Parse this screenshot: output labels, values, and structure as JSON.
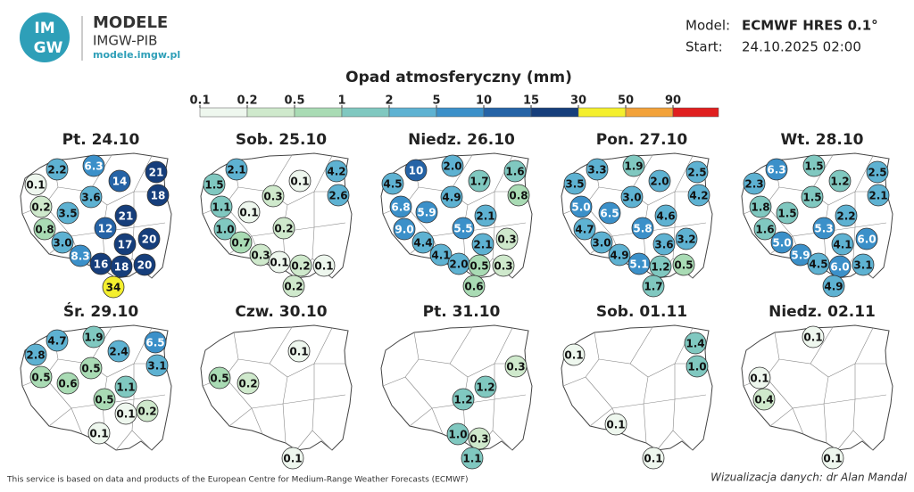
{
  "header": {
    "logo": [
      "IM",
      "GW"
    ],
    "brand": "MODELE",
    "org": "IMGW-PIB",
    "url": "modele.imgw.pl",
    "model_label": "Model:",
    "model": "ECMWF HRES 0.1°",
    "start_label": "Start:",
    "start": "24.10.2025 02:00"
  },
  "legend": {
    "title": "Opad atmosferyczny (mm)",
    "ticks": [
      0.1,
      0.2,
      0.5,
      1,
      2,
      5,
      10,
      15,
      30,
      50,
      90
    ],
    "colors": [
      "#eef7ee",
      "#cfe9cc",
      "#a9dbb4",
      "#80c8c0",
      "#5eb2d2",
      "#3b90c9",
      "#2563a6",
      "#163e7b",
      "#f4ef2e",
      "#f2a23a",
      "#e01f1f"
    ]
  },
  "maps": [
    {
      "date": "Pt. 24.10",
      "values": [
        "2.2",
        "6.3",
        "21",
        "0.1",
        "14",
        "18",
        "3.6",
        "0.2",
        "3.5",
        "21",
        "0.8",
        "12",
        "20",
        "3.0",
        "17",
        "8.3",
        "16",
        "18",
        "20",
        "34"
      ]
    },
    {
      "date": "Sob. 25.10",
      "values": [
        "2.1",
        "0.1",
        "4.2",
        "1.5",
        "0.3",
        "2.6",
        "1.1",
        "0.1",
        "1.0",
        "0.2",
        "0.7",
        "0.3",
        "0.1",
        "0.2",
        "0.1",
        "0.2"
      ]
    },
    {
      "date": "Niedz. 26.10",
      "values": [
        "10",
        "2.0",
        "1.6",
        "4.5",
        "1.7",
        "0.8",
        "4.9",
        "6.8",
        "5.9",
        "2.1",
        "9.0",
        "5.5",
        "0.3",
        "4.4",
        "2.1",
        "4.1",
        "2.0",
        "0.5",
        "0.3",
        "0.6"
      ]
    },
    {
      "date": "Pon. 27.10",
      "values": [
        "3.3",
        "1.9",
        "2.5",
        "3.5",
        "2.0",
        "4.2",
        "3.0",
        "5.0",
        "6.5",
        "4.6",
        "4.7",
        "5.8",
        "3.2",
        "3.0",
        "3.6",
        "4.9",
        "5.1",
        "1.2",
        "0.5",
        "1.7"
      ]
    },
    {
      "date": "Wt. 28.10",
      "values": [
        "6.3",
        "1.5",
        "2.5",
        "2.3",
        "1.2",
        "2.1",
        "1.5",
        "1.8",
        "1.5",
        "2.2",
        "1.6",
        "5.3",
        "6.0",
        "5.0",
        "4.1",
        "5.9",
        "4.5",
        "6.0",
        "3.1",
        "4.9"
      ]
    },
    {
      "date": "Śr. 29.10",
      "values": [
        "4.7",
        "1.9",
        "6.5",
        "2.8",
        "2.4",
        "3.1",
        "0.5",
        "0.5",
        "0.6",
        "1.1",
        "0.5",
        "0.1",
        "0.2",
        "0.1"
      ]
    },
    {
      "date": "Czw. 30.10",
      "values": [
        "0.1",
        "0.5",
        "0.2",
        "0.1"
      ]
    },
    {
      "date": "Pt. 31.10",
      "values": [
        "0.3",
        "1.2",
        "1.2",
        "1.0",
        "0.3",
        "1.1"
      ]
    },
    {
      "date": "Sob. 01.11",
      "values": [
        "1.4",
        "0.1",
        "1.0",
        "0.1",
        "0.1"
      ]
    },
    {
      "date": "Niedz. 02.11",
      "values": [
        "0.1",
        "0.1",
        "0.4",
        "0.1"
      ]
    }
  ],
  "footer": {
    "source": "This service is based on data and products of the European Centre for Medium-Range Weather Forecasts (ECMWF)",
    "credit": "Wizualizacja danych: dr Alan Mandal"
  }
}
